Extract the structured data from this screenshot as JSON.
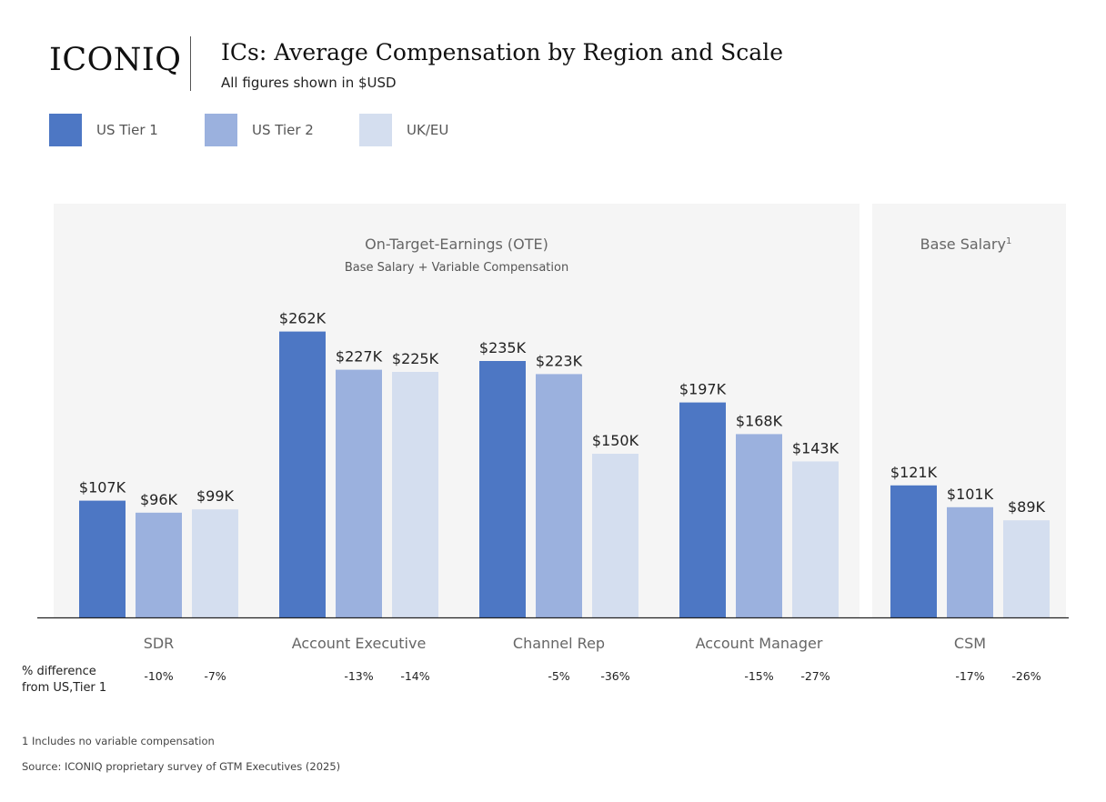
{
  "header": {
    "logo": "ICONIQ",
    "title": "ICs: Average Compensation by Region and Scale",
    "subtitle": "All figures shown in $USD"
  },
  "legend": [
    {
      "label": "US Tier 1",
      "color": "#4d77c4"
    },
    {
      "label": "US Tier 2",
      "color": "#9bb1de"
    },
    {
      "label": "UK/EU",
      "color": "#d4deef"
    }
  ],
  "colors": {
    "panel_bg": "#f5f5f5",
    "axis": "#222222"
  },
  "chart_data": {
    "type": "bar",
    "title": "ICs: Average Compensation by Region and Scale",
    "unit": "$USD",
    "categories": [
      "SDR",
      "Account Executive",
      "Channel Rep",
      "Account Manager",
      "CSM"
    ],
    "series": [
      {
        "name": "US Tier 1",
        "values": [
          107,
          262,
          235,
          197,
          121
        ],
        "labels": [
          "$107K",
          "$262K",
          "$235K",
          "$197K",
          "$121K"
        ]
      },
      {
        "name": "US Tier 2",
        "values": [
          96,
          227,
          223,
          168,
          101
        ],
        "labels": [
          "$96K",
          "$227K",
          "$223K",
          "$168K",
          "$101K"
        ]
      },
      {
        "name": "UK/EU",
        "values": [
          99,
          225,
          150,
          143,
          89
        ],
        "labels": [
          "$99K",
          "$225K",
          "$150K",
          "$143K",
          "$89K"
        ]
      }
    ],
    "panels": [
      {
        "title": "On-Target-Earnings (OTE)",
        "subtitle": "Base Salary + Variable Compensation",
        "categories": [
          "SDR",
          "Account Executive",
          "Channel Rep",
          "Account Manager"
        ]
      },
      {
        "title": "Base Salary",
        "superscript": "1",
        "subtitle": "",
        "categories": [
          "CSM"
        ]
      }
    ],
    "pct_difference": {
      "label_line1": "% difference",
      "label_line2": "from US,Tier 1",
      "us_tier2": [
        "-10%",
        "-13%",
        "-5%",
        "-15%",
        "-17%"
      ],
      "uk_eu": [
        "-7%",
        "-14%",
        "-36%",
        "-27%",
        "-26%"
      ]
    },
    "ylim": [
      0,
      270
    ]
  },
  "footnotes": {
    "note1": "1 Includes no variable compensation",
    "source": "Source: ICONIQ proprietary survey of GTM Executives (2025)"
  }
}
